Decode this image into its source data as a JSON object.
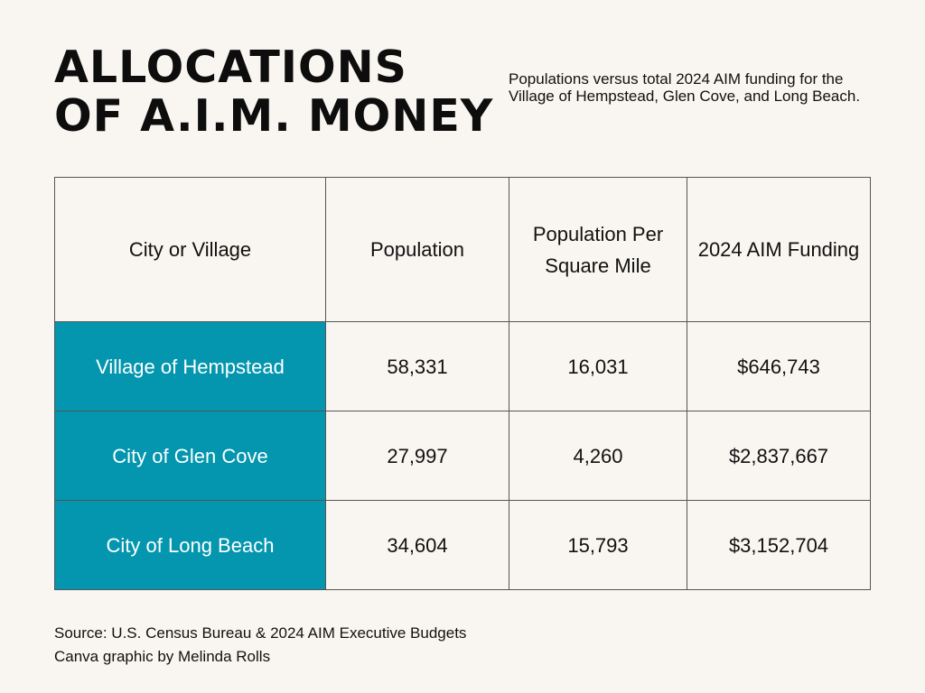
{
  "header": {
    "title_line1": "ALLOCATIONS",
    "title_line2": "OF A.I.M. MONEY",
    "subtitle": "Populations versus total 2024 AIM funding for the Village of Hempstead, Glen Cove, and Long Beach."
  },
  "colors": {
    "highlight": "#0396ae",
    "background": "#f9f6f1",
    "highlight_text": "#ffffff"
  },
  "chart_data": {
    "type": "table",
    "title": "ALLOCATIONS OF A.I.M. MONEY",
    "subtitle": "Populations versus total 2024 AIM funding for the Village of Hempstead, Glen Cove, and Long Beach.",
    "columns": [
      "City or Village",
      "Population",
      "Population Per Square Mile",
      "2024 AIM Funding"
    ],
    "rows": [
      [
        "Village of Hempstead",
        "58,331",
        "16,031",
        "$646,743"
      ],
      [
        "City of Glen Cove",
        "27,997",
        "4,260",
        "$2,837,667"
      ],
      [
        "City of Long Beach",
        "34,604",
        "15,793",
        "$3,152,704"
      ]
    ]
  },
  "footer": {
    "source": "Source: U.S. Census Bureau & 2024 AIM Executive Budgets",
    "credit": "Canva graphic by Melinda Rolls"
  }
}
